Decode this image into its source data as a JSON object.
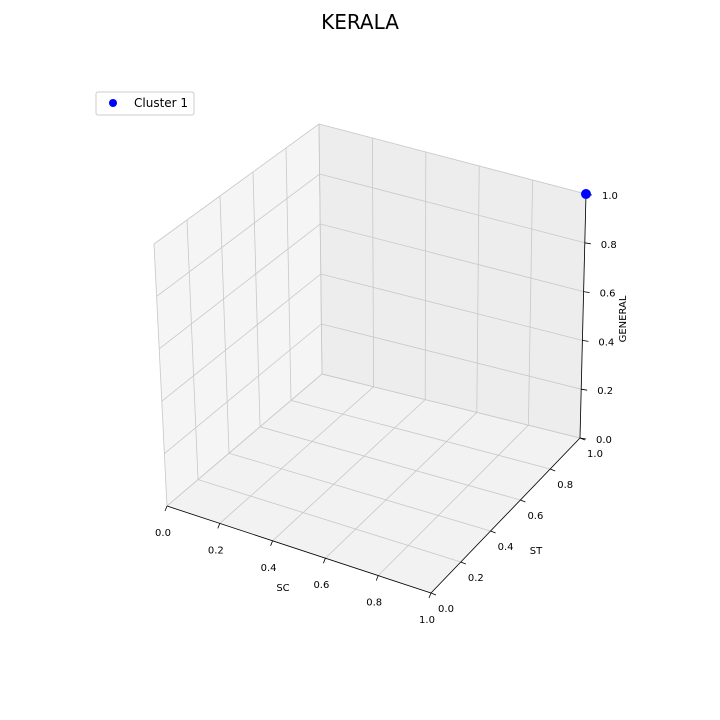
{
  "chart_data": {
    "type": "scatter",
    "projection": "3d",
    "title": "KERALA",
    "xlabel": "SC",
    "ylabel": "ST",
    "zlabel": "GENERAL",
    "xlim": [
      0,
      1
    ],
    "ylim": [
      0,
      1
    ],
    "zlim": [
      0,
      1
    ],
    "xticks": [
      0.0,
      0.2,
      0.4,
      0.6,
      0.8,
      1.0
    ],
    "yticks": [
      0.0,
      0.2,
      0.4,
      0.6,
      0.8,
      1.0
    ],
    "zticks": [
      0.0,
      0.2,
      0.4,
      0.6,
      0.8,
      1.0
    ],
    "xtick_labels": [
      "0.0",
      "0.2",
      "0.4",
      "0.6",
      "0.8",
      "1.0"
    ],
    "ytick_labels": [
      "0.0",
      "0.2",
      "0.4",
      "0.6",
      "0.8",
      "1.0"
    ],
    "ztick_labels": [
      "0.0",
      "0.2",
      "0.4",
      "0.6",
      "0.8",
      "1.0"
    ],
    "grid": true,
    "legend_position": "top-left",
    "series": [
      {
        "name": "Cluster 1",
        "color": "#0000ff",
        "points": [
          {
            "x": 1.0,
            "y": 1.0,
            "z": 1.0
          }
        ]
      }
    ]
  }
}
